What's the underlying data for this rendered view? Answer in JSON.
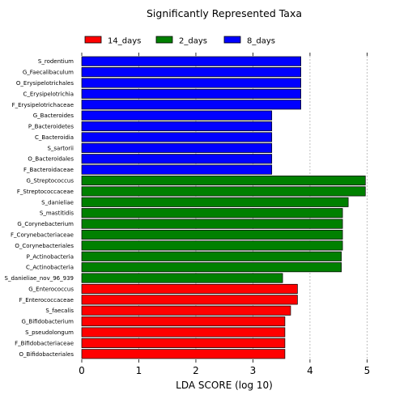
{
  "chart_data": {
    "type": "bar",
    "orientation": "horizontal",
    "title": "Significantly Represented Taxa",
    "xlabel": "LDA SCORE (log 10)",
    "ylabel": "",
    "xlim": [
      0,
      5.2
    ],
    "xticks": [
      0,
      1,
      2,
      3,
      4,
      5
    ],
    "grid": "vertical-dashed",
    "legend_position": "top",
    "legend": [
      {
        "name": "14_days",
        "color": "#ff0000"
      },
      {
        "name": "2_days",
        "color": "#008000"
      },
      {
        "name": "8_days",
        "color": "#0000ff"
      }
    ],
    "bars": [
      {
        "label": "S_rodentium",
        "value": 3.84,
        "group": "8_days"
      },
      {
        "label": "G_Faecalibaculum",
        "value": 3.84,
        "group": "8_days"
      },
      {
        "label": "O_Erysipelotrichales",
        "value": 3.84,
        "group": "8_days"
      },
      {
        "label": "C_Erysipelotrichia",
        "value": 3.84,
        "group": "8_days"
      },
      {
        "label": "F_Erysipelotrichaceae",
        "value": 3.84,
        "group": "8_days"
      },
      {
        "label": "G_Bacteroides",
        "value": 3.33,
        "group": "8_days"
      },
      {
        "label": "P_Bacteroidetes",
        "value": 3.33,
        "group": "8_days"
      },
      {
        "label": "C_Bacteroidia",
        "value": 3.33,
        "group": "8_days"
      },
      {
        "label": "S_sartorii",
        "value": 3.33,
        "group": "8_days"
      },
      {
        "label": "O_Bacteroidales",
        "value": 3.33,
        "group": "8_days"
      },
      {
        "label": "F_Bacteroidaceae",
        "value": 3.33,
        "group": "8_days"
      },
      {
        "label": "G_Streptococcus",
        "value": 4.97,
        "group": "2_days"
      },
      {
        "label": "F_Streptococcaceae",
        "value": 4.97,
        "group": "2_days"
      },
      {
        "label": "S_danieliae",
        "value": 4.67,
        "group": "2_days"
      },
      {
        "label": "S_mastitidis",
        "value": 4.57,
        "group": "2_days"
      },
      {
        "label": "G_Corynebacterium",
        "value": 4.57,
        "group": "2_days"
      },
      {
        "label": "F_Corynebacteriaceae",
        "value": 4.57,
        "group": "2_days"
      },
      {
        "label": "O_Corynebacteriales",
        "value": 4.57,
        "group": "2_days"
      },
      {
        "label": "P_Actinobacteria",
        "value": 4.55,
        "group": "2_days"
      },
      {
        "label": "C_Actinobacteria",
        "value": 4.55,
        "group": "2_days"
      },
      {
        "label": "S_danieliae_nov_96_939",
        "value": 3.52,
        "group": "2_days"
      },
      {
        "label": "G_Enterococcus",
        "value": 3.78,
        "group": "14_days"
      },
      {
        "label": "F_Enterococcaceae",
        "value": 3.78,
        "group": "14_days"
      },
      {
        "label": "S_faecalis",
        "value": 3.66,
        "group": "14_days"
      },
      {
        "label": "G_Bifidobacterium",
        "value": 3.56,
        "group": "14_days"
      },
      {
        "label": "S_pseudolongum",
        "value": 3.56,
        "group": "14_days"
      },
      {
        "label": "F_Bifidobacteriaceae",
        "value": 3.56,
        "group": "14_days"
      },
      {
        "label": "O_Bifidobacteriales",
        "value": 3.56,
        "group": "14_days"
      }
    ]
  }
}
